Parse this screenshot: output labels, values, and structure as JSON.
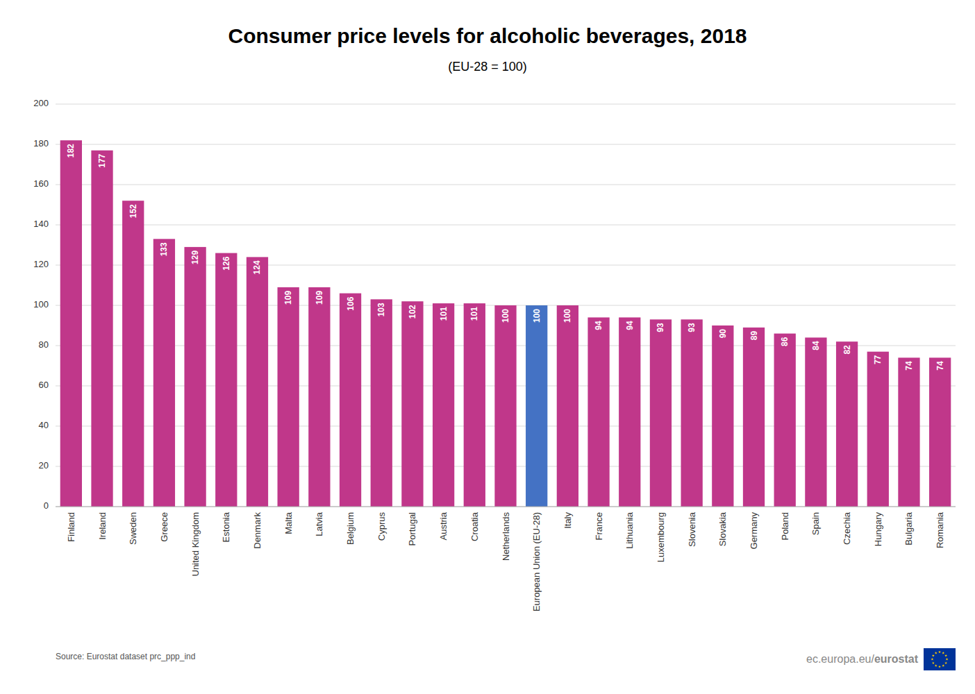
{
  "chart_data": {
    "type": "bar",
    "title": "Consumer price levels for alcoholic beverages, 2018",
    "subtitle": "(EU-28 = 100)",
    "annotations": [
      "Source: Eurostat dataset prc_ppp_ind",
      "ec.europa.eu/",
      "eurostat"
    ],
    "categories": [
      "Finland",
      "Ireland",
      "Sweden",
      "Greece",
      "United Kingdom",
      "Estonia",
      "Denmark",
      "Malta",
      "Latvia",
      "Belgium",
      "Cyprus",
      "Portugal",
      "Austria",
      "Croatia",
      "Netherlands",
      "European Union (EU-28)",
      "Italy",
      "France",
      "Lithuania",
      "Luxembourg",
      "Slovenia",
      "Slovakia",
      "Germany",
      "Poland",
      "Spain",
      "Czechia",
      "Hungary",
      "Bulgaria",
      "Romania"
    ],
    "values": [
      182,
      177,
      152,
      133,
      129,
      126,
      124,
      109,
      109,
      106,
      103,
      102,
      101,
      101,
      100,
      100,
      100,
      94,
      94,
      93,
      93,
      90,
      89,
      86,
      84,
      82,
      77,
      74,
      74
    ],
    "colors": [
      "#c0378a",
      "#c0378a",
      "#c0378a",
      "#c0378a",
      "#c0378a",
      "#c0378a",
      "#c0378a",
      "#c0378a",
      "#c0378a",
      "#c0378a",
      "#c0378a",
      "#c0378a",
      "#c0378a",
      "#c0378a",
      "#c0378a",
      "#4472c4",
      "#c0378a",
      "#c0378a",
      "#c0378a",
      "#c0378a",
      "#c0378a",
      "#c0378a",
      "#c0378a",
      "#c0378a",
      "#c0378a",
      "#c0378a",
      "#c0378a",
      "#c0378a",
      "#c0378a"
    ],
    "ylim": [
      0,
      200
    ],
    "yticks": [
      0,
      20,
      40,
      60,
      80,
      100,
      120,
      140,
      160,
      180,
      200
    ],
    "grid": true,
    "data_labels": true
  }
}
